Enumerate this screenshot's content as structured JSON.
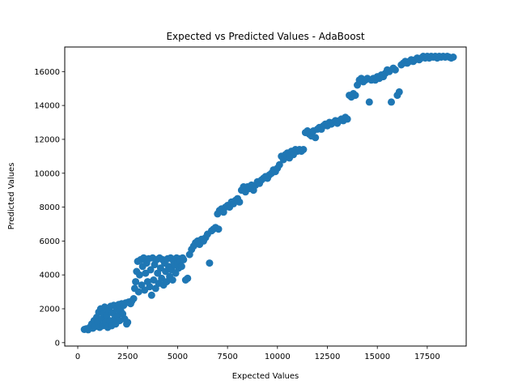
{
  "chart_data": {
    "type": "scatter",
    "title": "Expected vs Predicted Values - AdaBoost",
    "xlabel": "Expected Values",
    "ylabel": "Predicted Values",
    "xlim": [
      -650,
      19450
    ],
    "ylim": [
      -200,
      17450
    ],
    "xticks": [
      0,
      2500,
      5000,
      7500,
      10000,
      12500,
      15000,
      17500
    ],
    "yticks": [
      0,
      2000,
      4000,
      6000,
      8000,
      10000,
      12000,
      14000,
      16000
    ],
    "grid": false,
    "color": "#1f77b4",
    "series": [
      {
        "points": [
          [
            330,
            780
          ],
          [
            420,
            820
          ],
          [
            520,
            760
          ],
          [
            600,
            900
          ],
          [
            700,
            1100
          ],
          [
            760,
            850
          ],
          [
            820,
            1300
          ],
          [
            880,
            950
          ],
          [
            950,
            1500
          ],
          [
            1000,
            1200
          ],
          [
            1050,
            1800
          ],
          [
            1100,
            900
          ],
          [
            1150,
            2000
          ],
          [
            1200,
            1400
          ],
          [
            1250,
            1000
          ],
          [
            1300,
            1700
          ],
          [
            1350,
            2100
          ],
          [
            1400,
            1200
          ],
          [
            1450,
            1600
          ],
          [
            1500,
            900
          ],
          [
            1550,
            1900
          ],
          [
            1600,
            1300
          ],
          [
            1650,
            2150
          ],
          [
            1700,
            1000
          ],
          [
            1750,
            1750
          ],
          [
            1800,
            2200
          ],
          [
            1850,
            1400
          ],
          [
            1900,
            1100
          ],
          [
            1950,
            2000
          ],
          [
            2000,
            1600
          ],
          [
            2050,
            2250
          ],
          [
            2100,
            1300
          ],
          [
            2150,
            1900
          ],
          [
            2200,
            2300
          ],
          [
            2250,
            1700
          ],
          [
            2300,
            2200
          ],
          [
            2350,
            1400
          ],
          [
            2400,
            2350
          ],
          [
            2450,
            1100
          ],
          [
            2500,
            1200
          ],
          [
            2550,
            2400
          ],
          [
            2650,
            2300
          ],
          [
            2700,
            2450
          ],
          [
            2800,
            2600
          ],
          [
            2850,
            3200
          ],
          [
            2900,
            3600
          ],
          [
            2950,
            4200
          ],
          [
            3000,
            4800
          ],
          [
            3050,
            3000
          ],
          [
            3100,
            4000
          ],
          [
            3150,
            4900
          ],
          [
            3200,
            3400
          ],
          [
            3250,
            4500
          ],
          [
            3300,
            5000
          ],
          [
            3350,
            3100
          ],
          [
            3400,
            4100
          ],
          [
            3450,
            4700
          ],
          [
            3500,
            3600
          ],
          [
            3550,
            4950
          ],
          [
            3600,
            3300
          ],
          [
            3650,
            4300
          ],
          [
            3700,
            2800
          ],
          [
            3750,
            5000
          ],
          [
            3800,
            3700
          ],
          [
            3850,
            4600
          ],
          [
            3900,
            3200
          ],
          [
            3950,
            4900
          ],
          [
            4000,
            4100
          ],
          [
            4050,
            3500
          ],
          [
            4100,
            5000
          ],
          [
            4150,
            4400
          ],
          [
            4200,
            3800
          ],
          [
            4250,
            4900
          ],
          [
            4300,
            3400
          ],
          [
            4350,
            4700
          ],
          [
            4400,
            4200
          ],
          [
            4450,
            3600
          ],
          [
            4500,
            4950
          ],
          [
            4550,
            4500
          ],
          [
            4600,
            3900
          ],
          [
            4650,
            5000
          ],
          [
            4700,
            4300
          ],
          [
            4750,
            3700
          ],
          [
            4800,
            4800
          ],
          [
            4850,
            4600
          ],
          [
            4900,
            4100
          ],
          [
            4950,
            5000
          ],
          [
            5000,
            4700
          ],
          [
            5050,
            4400
          ],
          [
            5100,
            4950
          ],
          [
            5150,
            4800
          ],
          [
            5200,
            4500
          ],
          [
            5250,
            5000
          ],
          [
            5300,
            4900
          ],
          [
            5400,
            3700
          ],
          [
            5500,
            3800
          ],
          [
            5600,
            5200
          ],
          [
            5700,
            5500
          ],
          [
            5800,
            5700
          ],
          [
            5900,
            5900
          ],
          [
            6000,
            6000
          ],
          [
            6100,
            5800
          ],
          [
            6200,
            6100
          ],
          [
            6300,
            6000
          ],
          [
            6400,
            6200
          ],
          [
            6500,
            6400
          ],
          [
            6600,
            4700
          ],
          [
            6700,
            6600
          ],
          [
            6800,
            6700
          ],
          [
            6900,
            6800
          ],
          [
            7000,
            7600
          ],
          [
            7050,
            6700
          ],
          [
            7100,
            7800
          ],
          [
            7200,
            7900
          ],
          [
            7300,
            7700
          ],
          [
            7400,
            8000
          ],
          [
            7500,
            8100
          ],
          [
            7600,
            8000
          ],
          [
            7700,
            8300
          ],
          [
            7800,
            8200
          ],
          [
            7900,
            8400
          ],
          [
            8000,
            8500
          ],
          [
            8100,
            8300
          ],
          [
            8200,
            9000
          ],
          [
            8300,
            9200
          ],
          [
            8400,
            8900
          ],
          [
            8500,
            9200
          ],
          [
            8600,
            9100
          ],
          [
            8700,
            9300
          ],
          [
            8800,
            9000
          ],
          [
            8900,
            9300
          ],
          [
            9000,
            9500
          ],
          [
            9100,
            9400
          ],
          [
            9200,
            9600
          ],
          [
            9300,
            9700
          ],
          [
            9400,
            9800
          ],
          [
            9500,
            9700
          ],
          [
            9600,
            9900
          ],
          [
            9700,
            10000
          ],
          [
            9800,
            10200
          ],
          [
            9900,
            10100
          ],
          [
            10000,
            10300
          ],
          [
            10100,
            10500
          ],
          [
            10200,
            11000
          ],
          [
            10300,
            10800
          ],
          [
            10400,
            11100
          ],
          [
            10500,
            11200
          ],
          [
            10600,
            10900
          ],
          [
            10700,
            11300
          ],
          [
            10800,
            11100
          ],
          [
            10900,
            11400
          ],
          [
            11000,
            11300
          ],
          [
            11100,
            11400
          ],
          [
            11200,
            11300
          ],
          [
            11300,
            11400
          ],
          [
            11400,
            12400
          ],
          [
            11500,
            12500
          ],
          [
            11600,
            12300
          ],
          [
            11700,
            12200
          ],
          [
            11800,
            12500
          ],
          [
            11900,
            12100
          ],
          [
            12000,
            12600
          ],
          [
            12100,
            12700
          ],
          [
            12200,
            12600
          ],
          [
            12300,
            12800
          ],
          [
            12400,
            12900
          ],
          [
            12500,
            12800
          ],
          [
            12600,
            13000
          ],
          [
            12700,
            12900
          ],
          [
            12800,
            13000
          ],
          [
            12900,
            13100
          ],
          [
            13000,
            12950
          ],
          [
            13100,
            13100
          ],
          [
            13200,
            13200
          ],
          [
            13300,
            13100
          ],
          [
            13400,
            13300
          ],
          [
            13500,
            13200
          ],
          [
            13600,
            14600
          ],
          [
            13700,
            14500
          ],
          [
            13800,
            14700
          ],
          [
            13900,
            14600
          ],
          [
            14000,
            15200
          ],
          [
            14100,
            15500
          ],
          [
            14200,
            15600
          ],
          [
            14300,
            15400
          ],
          [
            14400,
            15500
          ],
          [
            14500,
            15600
          ],
          [
            14600,
            14200
          ],
          [
            14700,
            15500
          ],
          [
            14800,
            15600
          ],
          [
            14900,
            15500
          ],
          [
            15000,
            15700
          ],
          [
            15100,
            15600
          ],
          [
            15200,
            15800
          ],
          [
            15300,
            15700
          ],
          [
            15400,
            15900
          ],
          [
            15500,
            16100
          ],
          [
            15600,
            16000
          ],
          [
            15700,
            14200
          ],
          [
            15800,
            16200
          ],
          [
            15900,
            16100
          ],
          [
            16000,
            14600
          ],
          [
            16100,
            14800
          ],
          [
            16200,
            16400
          ],
          [
            16300,
            16500
          ],
          [
            16400,
            16600
          ],
          [
            16500,
            16500
          ],
          [
            16600,
            16600
          ],
          [
            16700,
            16700
          ],
          [
            16800,
            16600
          ],
          [
            16900,
            16700
          ],
          [
            17000,
            16800
          ],
          [
            17100,
            16700
          ],
          [
            17200,
            16800
          ],
          [
            17300,
            16900
          ],
          [
            17400,
            16800
          ],
          [
            17500,
            16900
          ],
          [
            17600,
            16800
          ],
          [
            17700,
            16900
          ],
          [
            17800,
            16850
          ],
          [
            17900,
            16900
          ],
          [
            18000,
            16800
          ],
          [
            18100,
            16900
          ],
          [
            18200,
            16850
          ],
          [
            18300,
            16900
          ],
          [
            18400,
            16850
          ],
          [
            18500,
            16900
          ],
          [
            18600,
            16850
          ],
          [
            18700,
            16800
          ],
          [
            18800,
            16850
          ]
        ]
      }
    ]
  }
}
